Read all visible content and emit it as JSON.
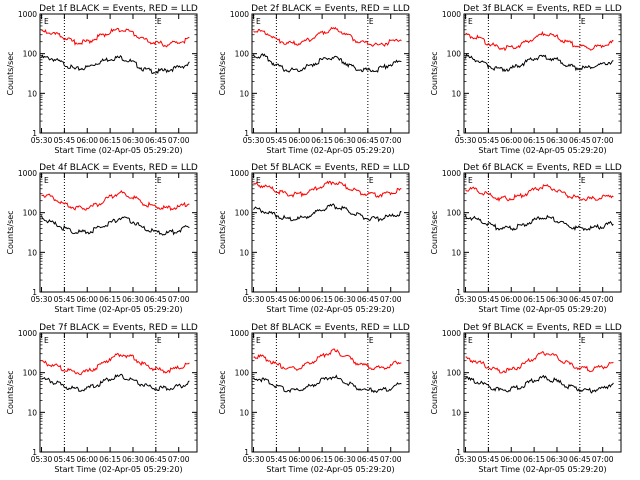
{
  "panel_defaults": {
    "ylabel": "Counts/sec",
    "xlabel": "Start Time (02-Apr-05 05:29:20)",
    "x_ticks": [
      "05:30",
      "05:45",
      "06:00",
      "06:15",
      "06:30",
      "06:45",
      "07:00"
    ],
    "y_ticks": [
      "1",
      "10",
      "100",
      "1000"
    ],
    "marker_label": "E"
  },
  "colors": {
    "events": "#000000",
    "lld": "#ff0000"
  },
  "chart_data": [
    {
      "type": "line",
      "title": "Det 1f BLACK = Events, RED = LLD",
      "ylim": [
        1,
        1000
      ],
      "log_y": true,
      "x": [
        "05:30",
        "05:37",
        "05:45",
        "05:52",
        "06:00",
        "06:07",
        "06:15",
        "06:22",
        "06:30",
        "06:37",
        "06:45",
        "06:52",
        "07:00",
        "07:07"
      ],
      "vlines": [
        "05:45",
        "06:45"
      ],
      "series": [
        {
          "name": "Events",
          "values": [
            80,
            75,
            55,
            40,
            45,
            60,
            75,
            80,
            60,
            40,
            35,
            38,
            45,
            55
          ]
        },
        {
          "name": "LLD",
          "values": [
            350,
            330,
            250,
            190,
            200,
            260,
            350,
            420,
            330,
            220,
            190,
            170,
            190,
            230
          ]
        }
      ]
    },
    {
      "type": "line",
      "title": "Det 2f BLACK = Events, RED = LLD",
      "ylim": [
        1,
        1000
      ],
      "log_y": true,
      "x": [
        "05:30",
        "05:37",
        "05:45",
        "05:52",
        "06:00",
        "06:07",
        "06:15",
        "06:22",
        "06:30",
        "06:37",
        "06:45",
        "06:52",
        "07:00",
        "07:07"
      ],
      "vlines": [
        "05:45",
        "06:45"
      ],
      "series": [
        {
          "name": "Events",
          "values": [
            90,
            85,
            50,
            38,
            40,
            50,
            70,
            80,
            60,
            42,
            38,
            40,
            55,
            65
          ]
        },
        {
          "name": "LLD",
          "values": [
            380,
            360,
            230,
            180,
            180,
            230,
            340,
            420,
            330,
            220,
            180,
            160,
            200,
            230
          ]
        }
      ]
    },
    {
      "type": "line",
      "title": "Det 3f BLACK = Events, RED = LLD",
      "ylim": [
        1,
        1000
      ],
      "log_y": true,
      "x": [
        "05:30",
        "05:37",
        "05:45",
        "05:52",
        "06:00",
        "06:07",
        "06:15",
        "06:22",
        "06:30",
        "06:37",
        "06:45",
        "06:52",
        "07:00",
        "07:07"
      ],
      "vlines": [
        "05:45",
        "06:45"
      ],
      "series": [
        {
          "name": "Events",
          "values": [
            85,
            70,
            50,
            40,
            42,
            55,
            75,
            85,
            70,
            50,
            42,
            45,
            55,
            65
          ]
        },
        {
          "name": "LLD",
          "values": [
            300,
            260,
            180,
            140,
            140,
            170,
            250,
            320,
            260,
            190,
            150,
            140,
            160,
            190
          ]
        }
      ]
    },
    {
      "type": "line",
      "title": "Det 4f BLACK = Events, RED = LLD",
      "ylim": [
        1,
        1000
      ],
      "log_y": true,
      "x": [
        "05:30",
        "05:37",
        "05:45",
        "05:52",
        "06:00",
        "06:07",
        "06:15",
        "06:22",
        "06:30",
        "06:37",
        "06:45",
        "06:52",
        "07:00",
        "07:07"
      ],
      "vlines": [
        "05:45",
        "06:45"
      ],
      "series": [
        {
          "name": "Events",
          "values": [
            75,
            55,
            40,
            32,
            32,
            40,
            55,
            75,
            60,
            40,
            32,
            30,
            35,
            45
          ]
        },
        {
          "name": "LLD",
          "values": [
            290,
            250,
            160,
            130,
            130,
            160,
            250,
            320,
            250,
            170,
            140,
            130,
            140,
            170
          ]
        }
      ]
    },
    {
      "type": "line",
      "title": "Det 5f BLACK = Events, RED = LLD",
      "ylim": [
        1,
        1000
      ],
      "log_y": true,
      "x": [
        "05:30",
        "05:37",
        "05:45",
        "05:52",
        "06:00",
        "06:07",
        "06:15",
        "06:22",
        "06:30",
        "06:37",
        "06:45",
        "06:52",
        "07:00",
        "07:07"
      ],
      "vlines": [
        "05:45",
        "06:45"
      ],
      "series": [
        {
          "name": "Events",
          "values": [
            130,
            110,
            85,
            70,
            70,
            85,
            120,
            150,
            120,
            90,
            70,
            70,
            80,
            95
          ]
        },
        {
          "name": "LLD",
          "values": [
            520,
            470,
            360,
            290,
            290,
            340,
            470,
            600,
            470,
            350,
            290,
            280,
            320,
            380
          ]
        }
      ]
    },
    {
      "type": "line",
      "title": "Det 6f BLACK = Events, RED = LLD",
      "ylim": [
        1,
        1000
      ],
      "log_y": true,
      "x": [
        "05:30",
        "05:37",
        "05:45",
        "05:52",
        "06:00",
        "06:07",
        "06:15",
        "06:22",
        "06:30",
        "06:37",
        "06:45",
        "06:52",
        "07:00",
        "07:07"
      ],
      "vlines": [
        "05:45",
        "06:45"
      ],
      "series": [
        {
          "name": "Events",
          "values": [
            80,
            70,
            50,
            40,
            40,
            48,
            65,
            80,
            65,
            48,
            40,
            40,
            45,
            55
          ]
        },
        {
          "name": "LLD",
          "values": [
            400,
            380,
            280,
            230,
            230,
            270,
            380,
            470,
            370,
            270,
            230,
            220,
            240,
            280
          ]
        }
      ]
    },
    {
      "type": "line",
      "title": "Det 7f BLACK = Events, RED = LLD",
      "ylim": [
        1,
        1000
      ],
      "log_y": true,
      "x": [
        "05:30",
        "05:37",
        "05:45",
        "05:52",
        "06:00",
        "06:07",
        "06:15",
        "06:22",
        "06:30",
        "06:37",
        "06:45",
        "06:52",
        "07:00",
        "07:07"
      ],
      "vlines": [
        "05:45",
        "06:45"
      ],
      "series": [
        {
          "name": "Events",
          "values": [
            70,
            60,
            45,
            38,
            40,
            50,
            70,
            80,
            65,
            48,
            40,
            40,
            45,
            55
          ]
        },
        {
          "name": "LLD",
          "values": [
            180,
            160,
            120,
            100,
            105,
            140,
            230,
            300,
            240,
            160,
            120,
            110,
            130,
            170
          ]
        }
      ]
    },
    {
      "type": "line",
      "title": "Det 8f BLACK = Events, RED = LLD",
      "ylim": [
        1,
        1000
      ],
      "log_y": true,
      "x": [
        "05:30",
        "05:37",
        "05:45",
        "05:52",
        "06:00",
        "06:07",
        "06:15",
        "06:22",
        "06:30",
        "06:37",
        "06:45",
        "06:52",
        "07:00",
        "07:07"
      ],
      "vlines": [
        "05:45",
        "06:45"
      ],
      "series": [
        {
          "name": "Events",
          "values": [
            75,
            65,
            45,
            36,
            36,
            45,
            65,
            80,
            60,
            42,
            36,
            35,
            40,
            55
          ]
        },
        {
          "name": "LLD",
          "values": [
            260,
            240,
            160,
            130,
            130,
            170,
            270,
            360,
            270,
            180,
            140,
            130,
            150,
            200
          ]
        }
      ]
    },
    {
      "type": "line",
      "title": "Det 9f BLACK = Events, RED = LLD",
      "ylim": [
        1,
        1000
      ],
      "log_y": true,
      "x": [
        "05:30",
        "05:37",
        "05:45",
        "05:52",
        "06:00",
        "06:07",
        "06:15",
        "06:22",
        "06:30",
        "06:37",
        "06:45",
        "06:52",
        "07:00",
        "07:07"
      ],
      "vlines": [
        "05:45",
        "06:45"
      ],
      "series": [
        {
          "name": "Events",
          "values": [
            70,
            60,
            45,
            36,
            38,
            45,
            65,
            75,
            60,
            45,
            38,
            35,
            40,
            55
          ]
        },
        {
          "name": "LLD",
          "values": [
            220,
            200,
            140,
            110,
            115,
            150,
            240,
            320,
            250,
            170,
            130,
            120,
            140,
            180
          ]
        }
      ]
    }
  ]
}
